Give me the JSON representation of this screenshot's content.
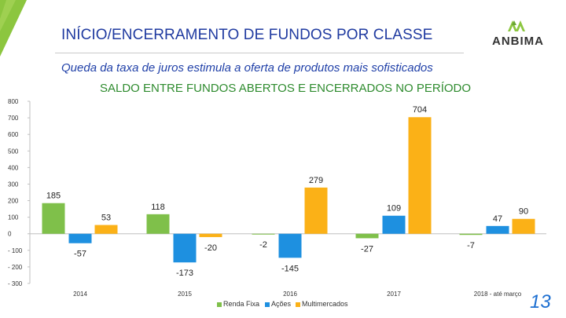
{
  "header": {
    "title": "INÍCIO/ENCERRAMENTO DE FUNDOS POR CLASSE",
    "subtitle": "Queda da taxa de juros estimula a oferta de produtos mais sofisticados",
    "logo_text": "ANBIMA",
    "page_number": "13"
  },
  "colors": {
    "green_accent": "#8cc63f",
    "blue_accent": "#1f3aa0",
    "renda_fixa": "#7fc04a",
    "acoes": "#1e90e0",
    "multimercados": "#fbb117"
  },
  "chart_data": {
    "type": "bar",
    "title": "SALDO ENTRE FUNDOS ABERTOS E ENCERRADOS NO PERÍODO",
    "categories": [
      "2014",
      "2015",
      "2016",
      "2017",
      "2018 - até março"
    ],
    "series": [
      {
        "name": "Renda Fixa",
        "values": [
          185,
          118,
          -2,
          -27,
          -7
        ]
      },
      {
        "name": "Ações",
        "values": [
          -57,
          -173,
          -145,
          109,
          47
        ]
      },
      {
        "name": "Multimercados",
        "values": [
          53,
          -20,
          279,
          704,
          90
        ]
      }
    ],
    "ylim": [
      -300,
      800
    ],
    "yticks": [
      -300,
      -200,
      -100,
      0,
      100,
      200,
      300,
      400,
      500,
      600,
      700,
      800
    ],
    "ytick_labels": [
      "- 300",
      "- 200",
      "- 100",
      "0",
      "100",
      "200",
      "300",
      "400",
      "500",
      "600",
      "700",
      "800"
    ],
    "legend_position": "bottom",
    "grid": false
  }
}
